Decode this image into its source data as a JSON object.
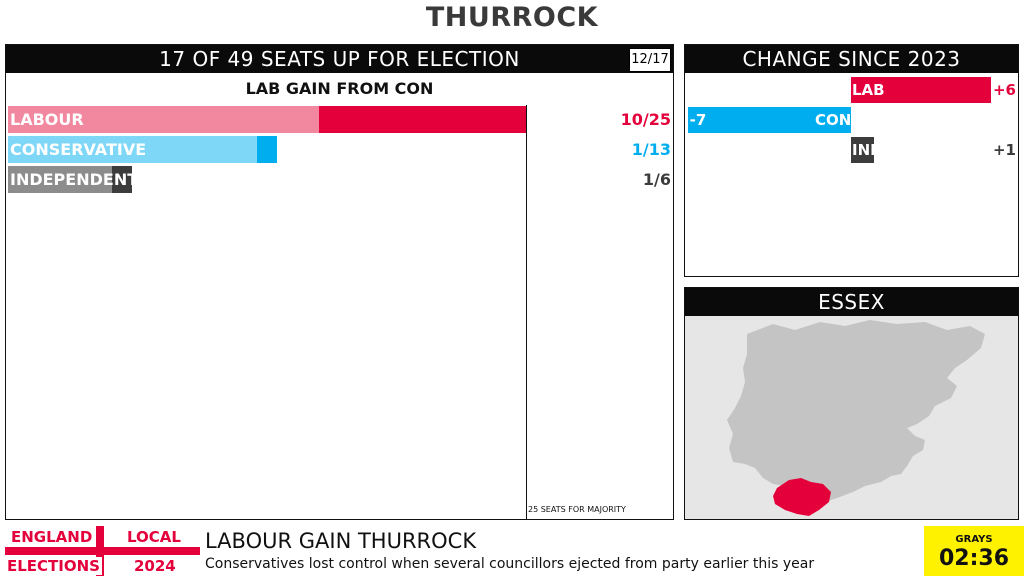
{
  "title": "THURROCK",
  "seats_panel": {
    "heading": "17 OF 49 SEATS UP FOR ELECTION",
    "declared": "12/17",
    "result": "LAB GAIN FROM CON",
    "majority_note": "25 SEATS FOR MAJORITY",
    "parties": [
      {
        "name": "LABOUR",
        "value_label": "10/25",
        "seats_won": 10,
        "seats_total": 25,
        "color_main": "#e4003b",
        "color_light": "#f288a0",
        "text_color": "#e4003b"
      },
      {
        "name": "CONSERVATIVE",
        "value_label": "1/13",
        "seats_won": 1,
        "seats_total": 13,
        "color_main": "#00aeef",
        "color_light": "#7fd7f7",
        "text_color": "#00aeef"
      },
      {
        "name": "INDEPENDENT",
        "value_label": "1/6",
        "seats_won": 1,
        "seats_total": 6,
        "color_main": "#3c3c3c",
        "color_light": "#8c8c8c",
        "text_color": "#3c3c3c"
      }
    ]
  },
  "change_panel": {
    "heading": "CHANGE SINCE 2023",
    "rows": [
      {
        "party": "LAB",
        "change": 6,
        "label": "+6",
        "color": "#e4003b"
      },
      {
        "party": "CON",
        "change": -7,
        "label": "-7",
        "color": "#00aeef"
      },
      {
        "party": "IND",
        "change": 1,
        "label": "+1",
        "color": "#3c3c3c"
      }
    ]
  },
  "map_panel": {
    "heading": "ESSEX",
    "highlight_color": "#e4003b",
    "land_color": "#c4c4c4",
    "sea_color": "#e6e6e6"
  },
  "footer": {
    "flag_top_left": "ENGLAND",
    "flag_top_right": "LOCAL",
    "flag_bottom_left": "ELECTIONS",
    "flag_bottom_right": "2024",
    "headline": "LABOUR GAIN THURROCK",
    "subline": "Conservatives lost control when several councillors ejected from party earlier this year",
    "clock_place": "GRAYS",
    "clock_time": "02:36"
  }
}
